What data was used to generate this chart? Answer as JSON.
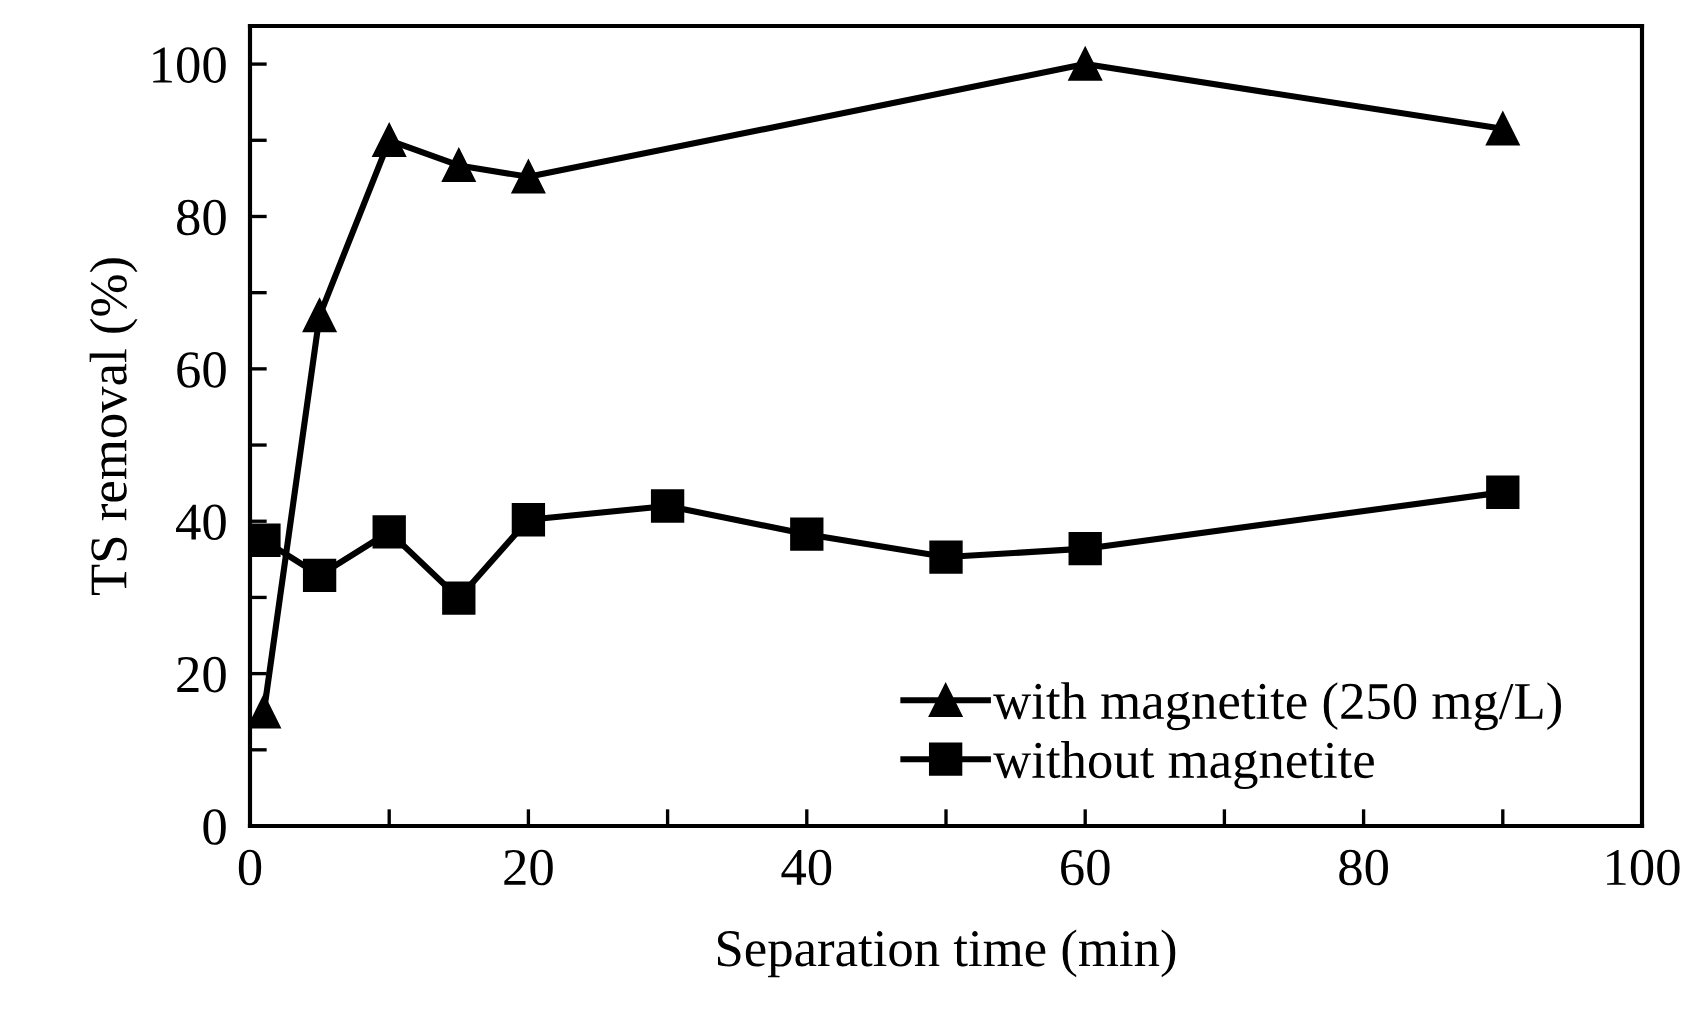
{
  "chart_data": {
    "type": "line",
    "xlabel": "Separation time (min)",
    "ylabel": "TS removal (%)",
    "series": [
      {
        "name": "with magnetite (250 mg/L)",
        "color": "#000000",
        "marker": "triangle",
        "x": [
          1,
          5,
          10,
          15,
          20,
          60,
          90
        ],
        "values": [
          15,
          67,
          90,
          86.7,
          85.2,
          100,
          91.5
        ]
      },
      {
        "name": "without magnetite",
        "color": "#000000",
        "marker": "square",
        "x": [
          1,
          5,
          10,
          15,
          20,
          30,
          40,
          50,
          60,
          90
        ],
        "values": [
          37.5,
          32.9,
          38.6,
          29.9,
          40.2,
          42,
          38.3,
          35.3,
          36.4,
          43.8
        ]
      }
    ],
    "xlim": [
      0,
      100
    ],
    "xticks": [
      0,
      {
        "value": 10,
        "label": null
      },
      20,
      {
        "value": 30,
        "label": null
      },
      40,
      {
        "value": 50,
        "label": null
      },
      60,
      {
        "value": 70,
        "label": null
      },
      80,
      {
        "value": 90,
        "label": null
      },
      100
    ],
    "ylim": [
      0,
      105
    ],
    "yticks": [
      0,
      {
        "value": 10,
        "label": null
      },
      20,
      {
        "value": 30,
        "label": null
      },
      40,
      {
        "value": 50,
        "label": null
      },
      60,
      {
        "value": 70,
        "label": null
      },
      80,
      {
        "value": 90,
        "label": null
      },
      100
    ],
    "grid": false,
    "legend": "bottom right",
    "line_style": "solid"
  }
}
